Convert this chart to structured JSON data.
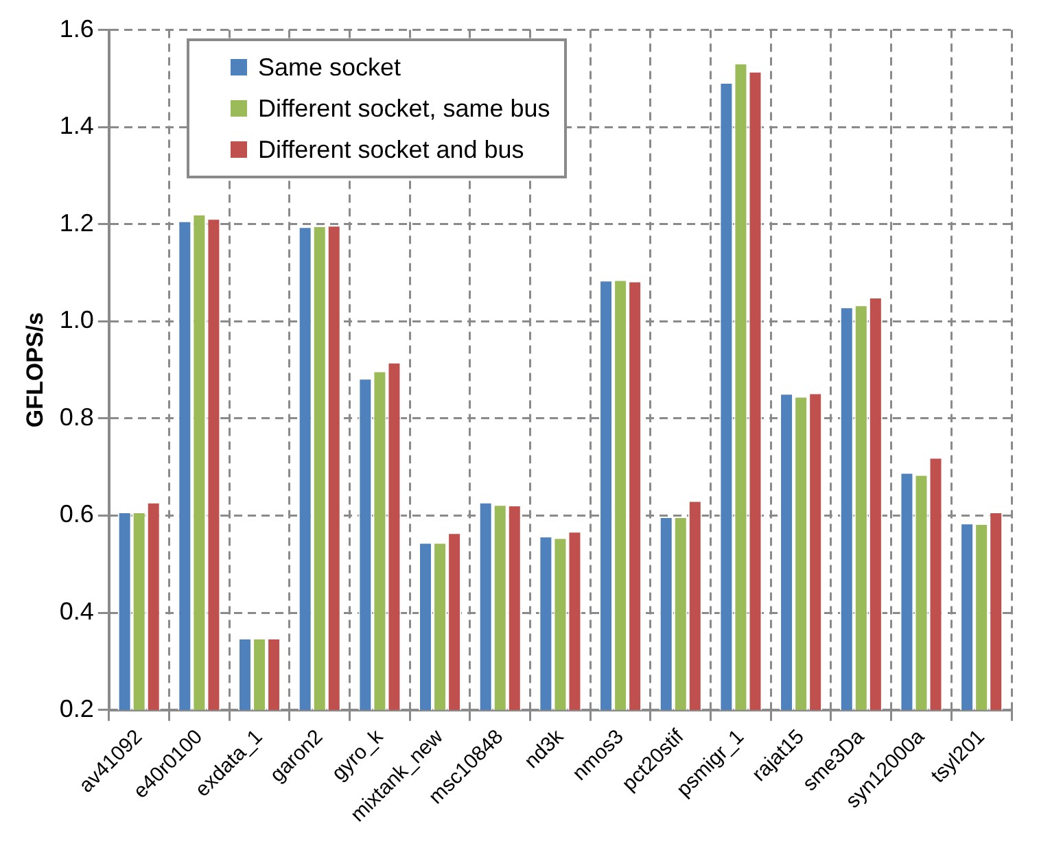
{
  "chart_data": {
    "type": "bar",
    "ylabel": "GFLOPS/s",
    "categories": [
      "av41092",
      "e40r0100",
      "exdata_1",
      "garon2",
      "gyro_k",
      "mixtank_new",
      "msc10848",
      "nd3k",
      "nmos3",
      "pct20stif",
      "psmigr_1",
      "rajat15",
      "sme3Da",
      "syn12000a",
      "tsyl201"
    ],
    "series": [
      {
        "name": "Same socket",
        "color": "#4f81bd",
        "values": [
          0.608,
          1.207,
          0.348,
          1.195,
          0.883,
          0.545,
          0.628,
          0.558,
          1.085,
          0.598,
          1.492,
          0.852,
          1.03,
          0.689,
          0.585
        ]
      },
      {
        "name": "Different socket, same bus",
        "color": "#9bbb59",
        "values": [
          0.608,
          1.221,
          0.348,
          1.197,
          0.898,
          0.545,
          0.623,
          0.555,
          1.086,
          0.598,
          1.532,
          0.846,
          1.034,
          0.685,
          0.584
        ]
      },
      {
        "name": "Different socket and bus",
        "color": "#c0504d",
        "values": [
          0.628,
          1.212,
          0.348,
          1.198,
          0.916,
          0.565,
          0.622,
          0.568,
          1.083,
          0.631,
          1.515,
          0.853,
          1.05,
          0.72,
          0.608
        ]
      }
    ],
    "ylim": [
      0.2,
      1.6
    ],
    "yticks": [
      0.2,
      0.4,
      0.6,
      0.8,
      {
        "value": 1,
        "label": "1.0"
      },
      1.2,
      1.4,
      1.6
    ],
    "grid": true,
    "legend": "top left"
  }
}
